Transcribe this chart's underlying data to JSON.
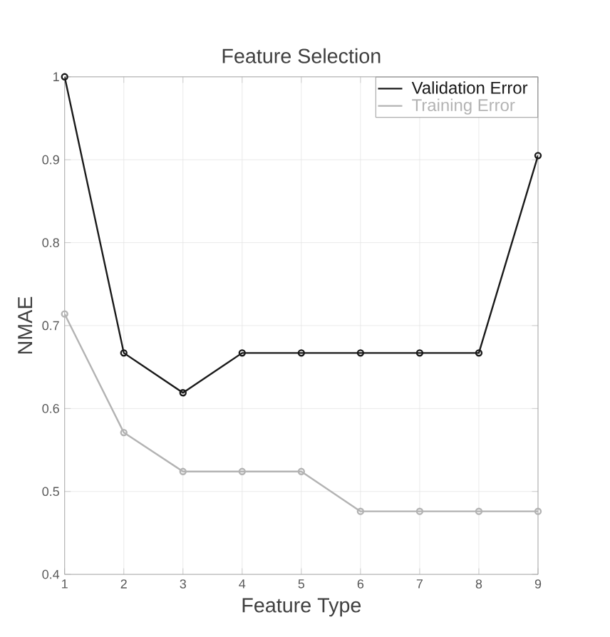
{
  "chart_data": {
    "type": "line",
    "title": "Feature Selection",
    "xlabel": "Feature Type",
    "ylabel": "NMAE",
    "x": [
      1,
      2,
      3,
      4,
      5,
      6,
      7,
      8,
      9
    ],
    "series": [
      {
        "name": "Validation Error",
        "color": "#1a1a1a",
        "values": [
          1.0,
          0.667,
          0.619,
          0.667,
          0.667,
          0.667,
          0.667,
          0.667,
          0.905
        ]
      },
      {
        "name": "Training Error",
        "color": "#b3b3b3",
        "values": [
          0.714,
          0.571,
          0.524,
          0.524,
          0.524,
          0.476,
          0.476,
          0.476,
          0.476
        ]
      }
    ],
    "xlim": [
      1,
      9
    ],
    "xticks": [
      1,
      2,
      3,
      4,
      5,
      6,
      7,
      8,
      9
    ],
    "ylim": [
      0.4,
      1.0
    ],
    "yticks": [
      0.4,
      0.5,
      0.6,
      0.7,
      0.8,
      0.9,
      1
    ],
    "grid": true,
    "legend": "top right",
    "marker": "circle",
    "line_style": "solid"
  }
}
